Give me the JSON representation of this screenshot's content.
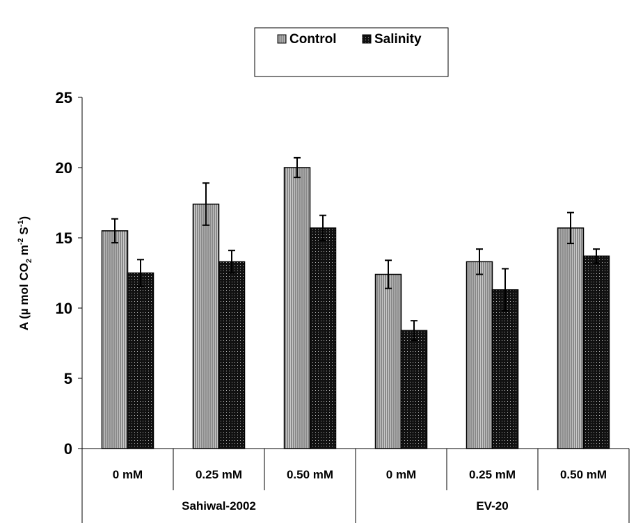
{
  "chart_data": {
    "type": "bar",
    "ylabel": "A (µ mol CO2 m-2 S-1)",
    "ylabel_parts": {
      "main": "A (µ mol CO",
      "sub": "2",
      "mid": " m",
      "sup1": "-2",
      "mid2": " S",
      "sup2": "-1",
      "end": ")"
    },
    "ylim": [
      0,
      25
    ],
    "yticks": [
      "0",
      "5",
      "10",
      "15",
      "20",
      "25"
    ],
    "grid": false,
    "legend_position": "top-center",
    "groups": [
      {
        "label": "Sahiwal-2002",
        "categories": [
          "0 mM",
          "0.25 mM",
          "0.50 mM"
        ]
      },
      {
        "label": "EV-20",
        "categories": [
          "0 mM",
          "0.25 mM",
          "0.50 mM"
        ]
      }
    ],
    "categories": [
      "0 mM",
      "0.25 mM",
      "0.50 mM",
      "0 mM",
      "0.25 mM",
      "0.50 mM"
    ],
    "series": [
      {
        "name": "Control",
        "color": "#8a8a8a",
        "pattern": "vertical-stripes",
        "values": [
          15.5,
          17.4,
          20.0,
          12.4,
          13.3,
          15.7
        ],
        "errors": [
          0.85,
          1.5,
          0.7,
          1.0,
          0.9,
          1.1
        ]
      },
      {
        "name": "Salinity",
        "color": "#111111",
        "pattern": "dots",
        "values": [
          12.5,
          13.3,
          15.7,
          8.4,
          11.3,
          13.7
        ],
        "errors": [
          0.95,
          0.8,
          0.9,
          0.7,
          1.5,
          0.5
        ]
      }
    ]
  }
}
